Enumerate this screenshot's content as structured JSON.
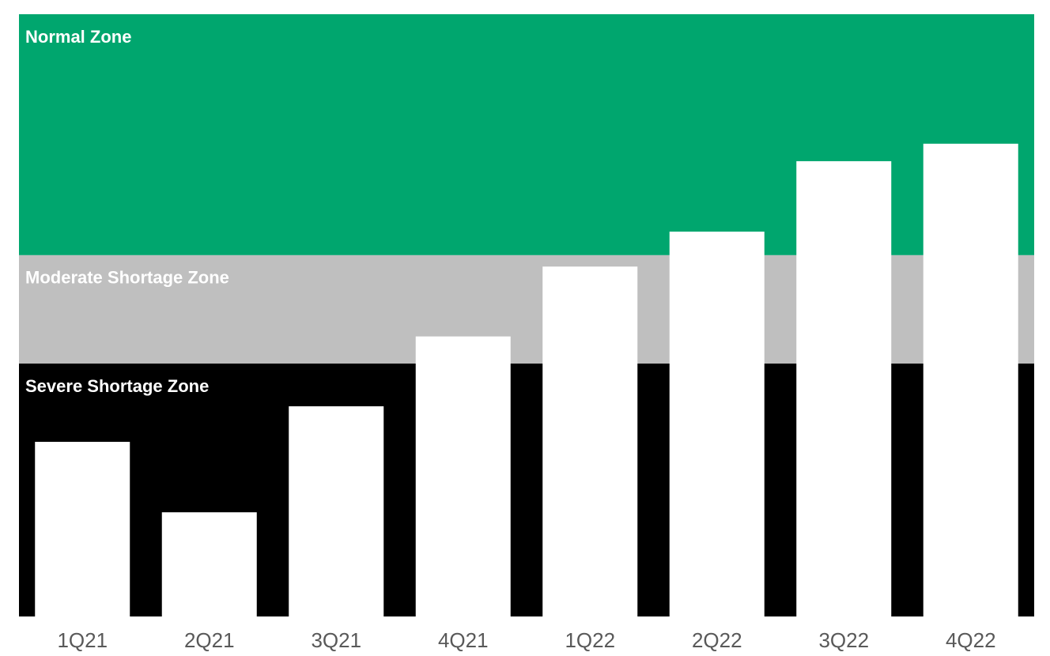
{
  "chart_data": {
    "type": "bar",
    "categories": [
      "1Q21",
      "2Q21",
      "3Q21",
      "4Q21",
      "1Q22",
      "2Q22",
      "3Q22",
      "4Q22"
    ],
    "values": [
      29,
      17.3,
      34.9,
      46.5,
      58.1,
      63.9,
      75.6,
      78.5
    ],
    "color": "#ffffff",
    "ylim": [
      0,
      100
    ],
    "zones": [
      {
        "label": "Severe Shortage Zone",
        "from": 0,
        "to": 42,
        "color": "#000000"
      },
      {
        "label": "Moderate Shortage Zone",
        "from": 42,
        "to": 60,
        "color": "#bfbfbf"
      },
      {
        "label": "Normal Zone",
        "from": 60,
        "to": 100,
        "color": "#00a66e"
      }
    ]
  }
}
